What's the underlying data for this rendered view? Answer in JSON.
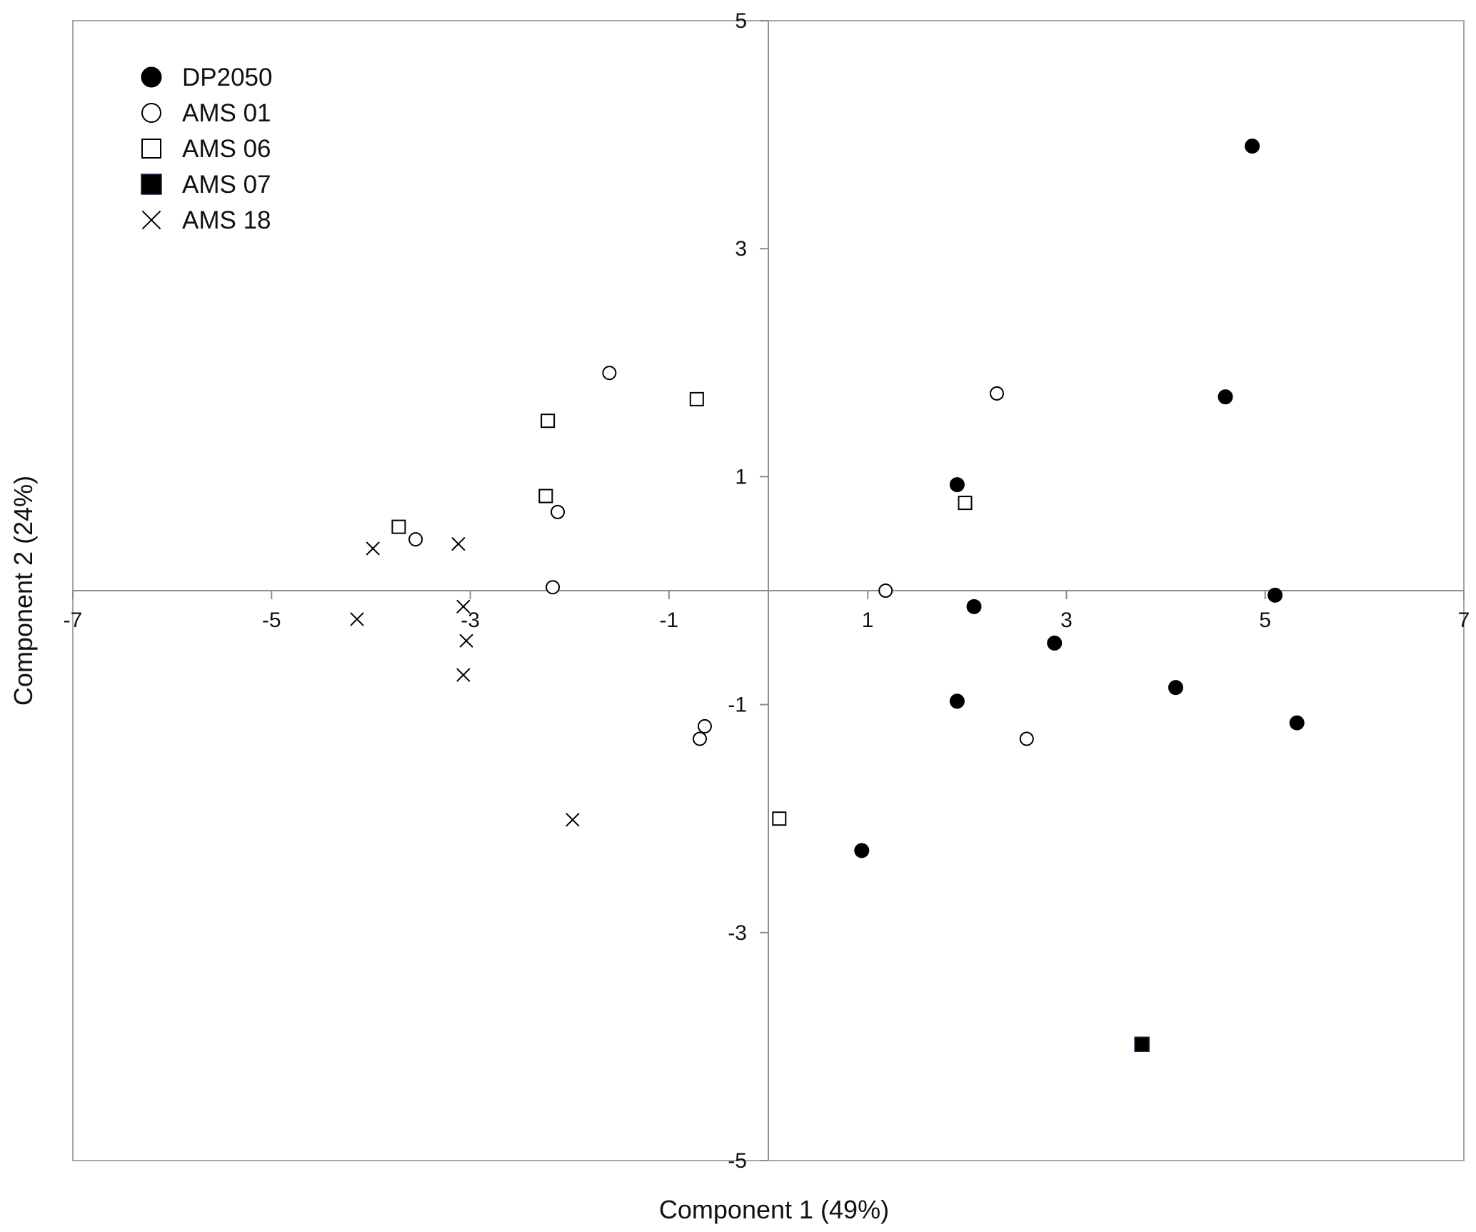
{
  "chart_data": {
    "type": "scatter",
    "title": "",
    "xlabel": "Component 1 (49%)",
    "ylabel": "Component 2 (24%)",
    "xlim": [
      -7,
      7
    ],
    "ylim": [
      -5,
      5
    ],
    "xticks": [
      -7,
      -5,
      -3,
      -1,
      1,
      3,
      5,
      7
    ],
    "yticks": [
      5,
      3,
      1,
      -1,
      -3,
      -5
    ],
    "xtick_labels": [
      "-7",
      "-5",
      "-3",
      "-1",
      "1",
      "3",
      "5",
      "7"
    ],
    "ytick_labels": [
      "5",
      "3",
      "1",
      "-1",
      "-3",
      "-5"
    ],
    "grid": false,
    "legend_position": "top-left",
    "colors": {
      "marker": "#000000",
      "axis": "#8c8c8c",
      "frame": "#a6a6a6"
    },
    "series": [
      {
        "name": "DP2050",
        "marker": "filled-circle",
        "points": [
          [
            4.87,
            3.9
          ],
          [
            4.6,
            1.7
          ],
          [
            1.9,
            0.93
          ],
          [
            5.1,
            -0.04
          ],
          [
            2.07,
            -0.14
          ],
          [
            2.88,
            -0.46
          ],
          [
            4.1,
            -0.85
          ],
          [
            1.9,
            -0.97
          ],
          [
            5.32,
            -1.16
          ],
          [
            0.94,
            -2.28
          ]
        ]
      },
      {
        "name": "AMS 01",
        "marker": "open-circle",
        "points": [
          [
            -1.6,
            1.91
          ],
          [
            2.3,
            1.73
          ],
          [
            -2.12,
            0.69
          ],
          [
            -3.55,
            0.45
          ],
          [
            -2.17,
            0.03
          ],
          [
            1.18,
            0.0
          ],
          [
            -0.64,
            -1.19
          ],
          [
            -0.69,
            -1.3
          ],
          [
            2.6,
            -1.3
          ]
        ]
      },
      {
        "name": "AMS 06",
        "marker": "open-square",
        "points": [
          [
            -0.72,
            1.68
          ],
          [
            -2.22,
            1.49
          ],
          [
            -2.24,
            0.83
          ],
          [
            -3.72,
            0.56
          ],
          [
            1.98,
            0.77
          ],
          [
            0.11,
            -2.0
          ]
        ]
      },
      {
        "name": "AMS 07",
        "marker": "filled-square",
        "points": [
          [
            3.76,
            -3.98
          ]
        ]
      },
      {
        "name": "AMS 18",
        "marker": "cross",
        "points": [
          [
            -3.98,
            0.37
          ],
          [
            -3.12,
            0.41
          ],
          [
            -4.14,
            -0.25
          ],
          [
            -3.07,
            -0.14
          ],
          [
            -3.04,
            -0.44
          ],
          [
            -3.07,
            -0.74
          ],
          [
            -1.97,
            -2.01
          ]
        ]
      }
    ]
  }
}
